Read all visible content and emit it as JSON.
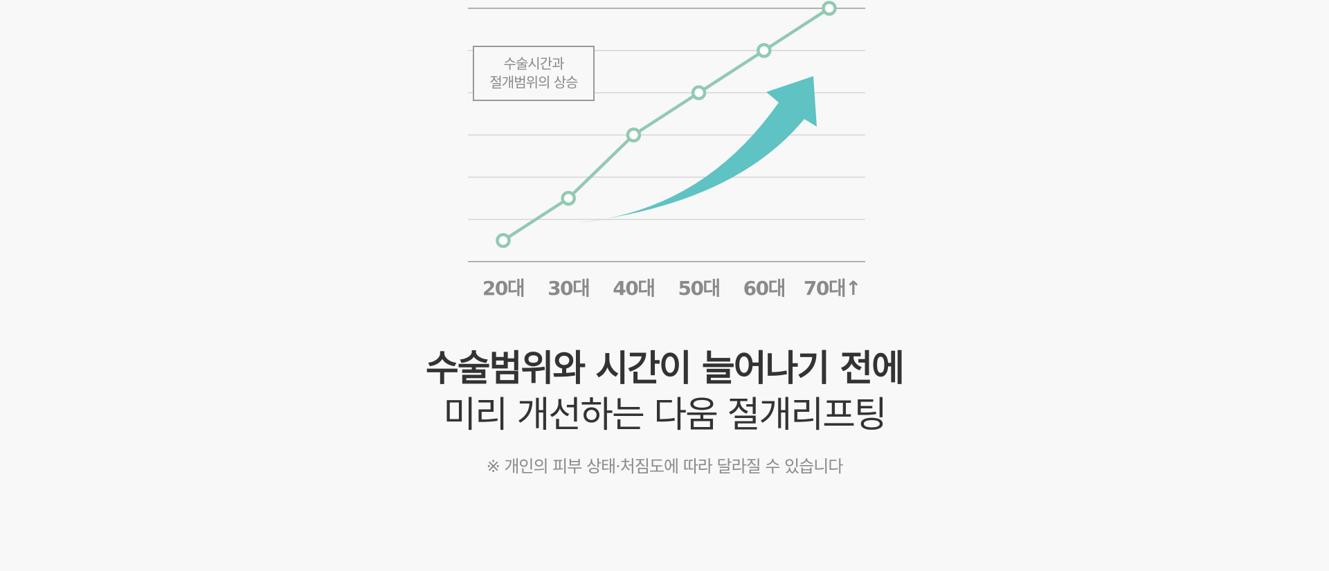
{
  "chart_data": {
    "type": "line",
    "categories": [
      "20대",
      "30대",
      "40대",
      "50대",
      "60대",
      "70대↑"
    ],
    "values": [
      0.5,
      1.5,
      3.0,
      4.0,
      5.0,
      6.0
    ],
    "ylim": [
      0,
      6
    ],
    "grid": true,
    "annotation": "수술시간과\n절개범위의 상승",
    "colors": {
      "line": "#92c9b3",
      "arrow": "#5fc2c3",
      "gridline": "#cfcfcf",
      "axis": "#999999",
      "tick_label": "#8a8a8a"
    }
  },
  "headline": {
    "line1": "수술범위와 시간이 늘어나기 전에",
    "line2": "미리 개선하는 다움 절개리프팅"
  },
  "footnote": "※ 개인의 피부 상태·처짐도에 따라 달라질 수 있습니다"
}
